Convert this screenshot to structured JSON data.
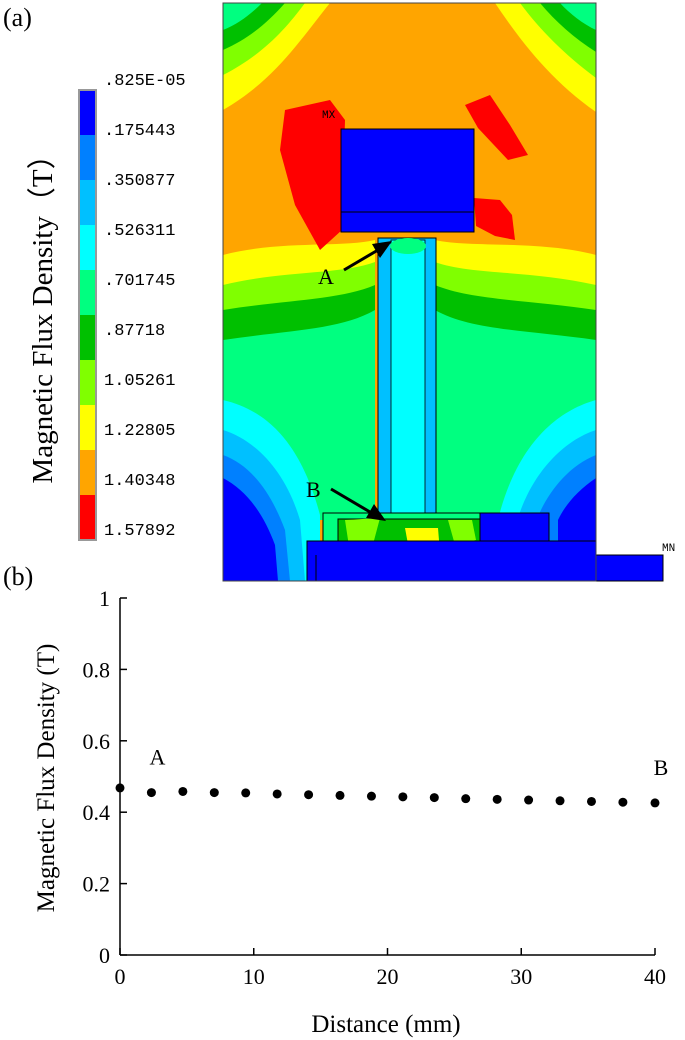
{
  "panel_a": {
    "label": "(a)",
    "colorbar": {
      "title": "Magnetic Flux Density（T）",
      "levels": [
        ".825E-05",
        ".175443",
        ".350877",
        ".526311",
        ".701745",
        ".87718",
        "1.05261",
        "1.22805",
        "1.40348",
        "1.57892"
      ],
      "colors": [
        "#0000ff",
        "#0080ff",
        "#00c0ff",
        "#00ffff",
        "#00ff80",
        "#00c000",
        "#80ff00",
        "#ffff00",
        "#ffa500",
        "#ff0000"
      ]
    },
    "annotations": {
      "max_marker": "MX",
      "min_marker": "MN",
      "point_a": "A",
      "point_b": "B"
    }
  },
  "panel_b": {
    "label": "(b)",
    "chart_data": {
      "type": "scatter",
      "xlabel": "Distance (mm)",
      "ylabel": "Magnetic Flux Density (T)",
      "xlim": [
        0,
        40
      ],
      "ylim": [
        0,
        1
      ],
      "x_ticks": [
        0,
        10,
        20,
        30,
        40
      ],
      "y_ticks": [
        0,
        0.2,
        0.4,
        0.6,
        0.8,
        1
      ],
      "x_tick_labels": [
        "0",
        "10",
        "20",
        "30",
        "40"
      ],
      "y_tick_labels": [
        "0",
        "0.2",
        "0.4",
        "0.6",
        "0.8",
        "1"
      ],
      "grid": false,
      "series": [
        {
          "x": [
            0,
            2.35,
            4.7,
            7.05,
            9.4,
            11.75,
            14.1,
            16.45,
            18.8,
            21.15,
            23.5,
            25.85,
            28.2,
            30.55,
            32.9,
            35.25,
            37.6,
            40
          ],
          "y": [
            0.468,
            0.455,
            0.458,
            0.455,
            0.454,
            0.451,
            0.449,
            0.447,
            0.445,
            0.443,
            0.441,
            0.438,
            0.436,
            0.434,
            0.432,
            0.43,
            0.428,
            0.426
          ]
        }
      ],
      "annotations": [
        {
          "text": "A",
          "x": 2.35,
          "y": 0.455
        },
        {
          "text": "B",
          "x": 40,
          "y": 0.426
        }
      ]
    }
  }
}
